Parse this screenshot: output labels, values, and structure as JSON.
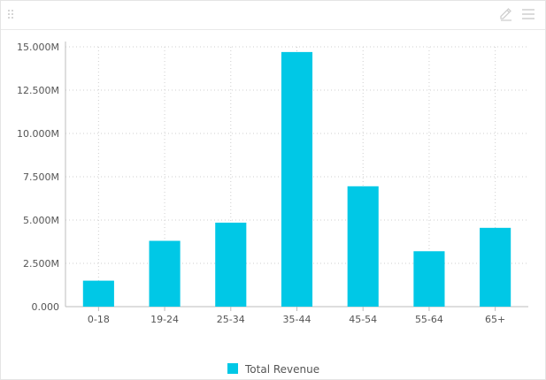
{
  "widget": {
    "drag_icon": "drag-handle-icon",
    "edit_icon": "pencil-icon",
    "menu_icon": "hamburger-menu-icon"
  },
  "chart_data": {
    "type": "bar",
    "categories": [
      "0-18",
      "19-24",
      "25-34",
      "35-44",
      "45-54",
      "55-64",
      "65+"
    ],
    "series": [
      {
        "name": "Total Revenue",
        "color": "#00c8e6",
        "values": [
          1500000,
          3800000,
          4850000,
          14700000,
          6950000,
          3200000,
          4550000
        ]
      }
    ],
    "ylim": [
      0,
      15000000
    ],
    "yticks": [
      0,
      2500000,
      5000000,
      7500000,
      10000000,
      12500000,
      15000000
    ],
    "ytick_labels": [
      "0.000",
      "2.500M",
      "5.000M",
      "7.500M",
      "10.000M",
      "12.500M",
      "15.000M"
    ],
    "title": "",
    "xlabel": "",
    "ylabel": "",
    "grid": true,
    "legend_position": "bottom-center",
    "grid_color": "#cfcfcf",
    "axis_color": "#bdbdbd"
  }
}
